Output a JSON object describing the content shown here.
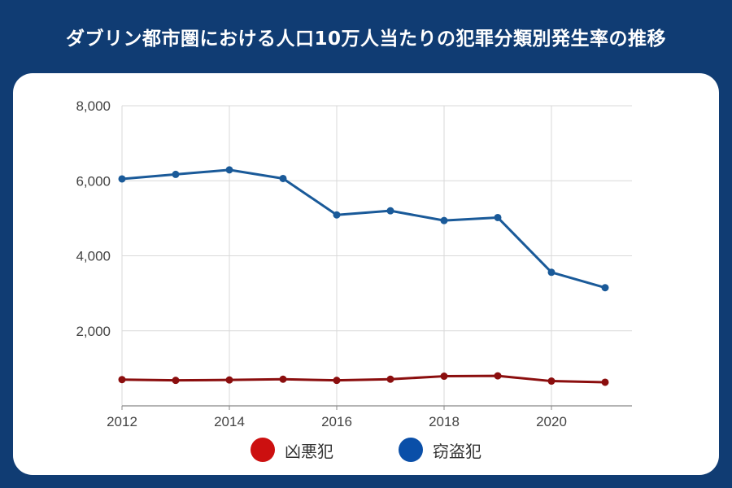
{
  "header": {
    "title": "ダブリン都市圏における人口10万人当たりの犯罪分類別発生率の推移"
  },
  "colors": {
    "background": "#103c73",
    "card": "#ffffff",
    "series_violent": "#8b0e0e",
    "series_theft": "#1a5a99",
    "legend_violent": "#cc1010",
    "legend_theft": "#0a4fa8",
    "grid": "#d9d9d9"
  },
  "chart_data": {
    "type": "line",
    "title": "ダブリン都市圏における人口10万人当たりの犯罪分類別発生率の推移",
    "x": [
      2012,
      2013,
      2014,
      2015,
      2016,
      2017,
      2018,
      2019,
      2020,
      2021
    ],
    "x_tick_labels": [
      "2012",
      "2014",
      "2016",
      "2018",
      "2020"
    ],
    "y_tick_labels": [
      "2,000",
      "4,000",
      "6,000",
      "8,000"
    ],
    "ylim": [
      0,
      8000
    ],
    "grid": true,
    "legend_position": "bottom",
    "series": [
      {
        "name": "凶悪犯",
        "values": [
          700,
          680,
          690,
          710,
          680,
          710,
          790,
          800,
          660,
          630
        ]
      },
      {
        "name": "窃盗犯",
        "values": [
          6050,
          6170,
          6290,
          6060,
          5090,
          5200,
          4940,
          5020,
          3560,
          3150
        ]
      }
    ]
  }
}
